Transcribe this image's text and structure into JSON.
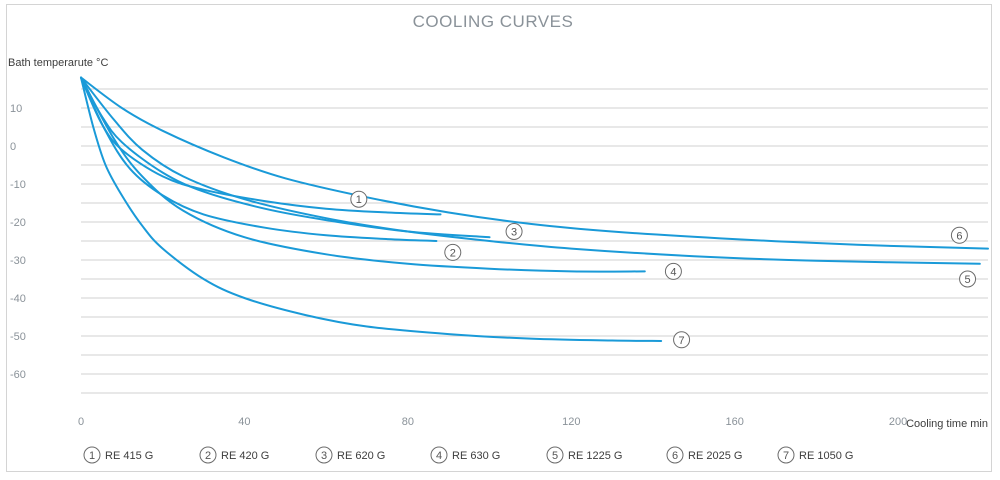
{
  "chart_data": {
    "type": "line",
    "title": "COOLING CURVES",
    "ylabel": "Bath temperarute °C",
    "xlabel": "Cooling time min",
    "xlim": [
      0,
      222
    ],
    "ylim": [
      -70,
      20
    ],
    "x_ticks": [
      0,
      40,
      80,
      120,
      160,
      200
    ],
    "y_ticks": [
      10,
      0,
      -10,
      -20,
      -30,
      -40,
      -50,
      -60
    ],
    "grid": true,
    "legend_position": "bottom",
    "line_color": "#1a9ad8",
    "series": [
      {
        "marker": "1",
        "name": "RE 415 G",
        "label_point": [
          68,
          -14
        ],
        "points": [
          [
            0,
            18
          ],
          [
            5,
            6
          ],
          [
            10,
            -1
          ],
          [
            20,
            -8
          ],
          [
            30,
            -11.5
          ],
          [
            45,
            -14.5
          ],
          [
            60,
            -16.5
          ],
          [
            75,
            -17.5
          ],
          [
            88,
            -18
          ]
        ]
      },
      {
        "marker": "2",
        "name": "RE 420 G",
        "label_point": [
          91,
          -28
        ],
        "points": [
          [
            0,
            18
          ],
          [
            6,
            4
          ],
          [
            12,
            -6
          ],
          [
            20,
            -13
          ],
          [
            30,
            -18
          ],
          [
            45,
            -21.5
          ],
          [
            60,
            -23.5
          ],
          [
            75,
            -24.5
          ],
          [
            87,
            -25
          ]
        ]
      },
      {
        "marker": "3",
        "name": "RE 620 G",
        "label_point": [
          106,
          -22.5
        ],
        "points": [
          [
            0,
            18
          ],
          [
            5,
            8
          ],
          [
            10,
            1
          ],
          [
            20,
            -7
          ],
          [
            30,
            -12
          ],
          [
            45,
            -16.5
          ],
          [
            60,
            -19.5
          ],
          [
            80,
            -22.5
          ],
          [
            100,
            -24
          ]
        ]
      },
      {
        "marker": "4",
        "name": "RE 630 G",
        "label_point": [
          145,
          -33
        ],
        "points": [
          [
            0,
            18
          ],
          [
            8,
            2
          ],
          [
            15,
            -8
          ],
          [
            25,
            -17
          ],
          [
            40,
            -24
          ],
          [
            60,
            -28.5
          ],
          [
            80,
            -31
          ],
          [
            100,
            -32.3
          ],
          [
            120,
            -33
          ],
          [
            138,
            -33
          ]
        ]
      },
      {
        "marker": "5",
        "name": "RE 1225 G",
        "label_point": [
          217,
          -35
        ],
        "points": [
          [
            0,
            18
          ],
          [
            8,
            7
          ],
          [
            15,
            -1
          ],
          [
            25,
            -8
          ],
          [
            40,
            -14
          ],
          [
            60,
            -19
          ],
          [
            80,
            -22.5
          ],
          [
            100,
            -25
          ],
          [
            120,
            -27
          ],
          [
            150,
            -29
          ],
          [
            180,
            -30.2
          ],
          [
            220,
            -31
          ]
        ]
      },
      {
        "marker": "6",
        "name": "RE 2025 G",
        "label_point": [
          215,
          -23.5
        ],
        "points": [
          [
            0,
            18
          ],
          [
            10,
            10
          ],
          [
            20,
            4
          ],
          [
            35,
            -3
          ],
          [
            50,
            -8.5
          ],
          [
            70,
            -13.5
          ],
          [
            90,
            -17.5
          ],
          [
            110,
            -20.5
          ],
          [
            130,
            -22.5
          ],
          [
            160,
            -24.5
          ],
          [
            190,
            -26
          ],
          [
            222,
            -27
          ]
        ]
      },
      {
        "marker": "7",
        "name": "RE 1050 G",
        "label_point": [
          147,
          -51
        ],
        "points": [
          [
            0,
            18
          ],
          [
            3,
            5
          ],
          [
            6,
            -5
          ],
          [
            10,
            -13
          ],
          [
            15,
            -21
          ],
          [
            20,
            -27
          ],
          [
            30,
            -35
          ],
          [
            40,
            -40
          ],
          [
            55,
            -44.5
          ],
          [
            70,
            -47.5
          ],
          [
            90,
            -49.5
          ],
          [
            110,
            -50.7
          ],
          [
            130,
            -51.2
          ],
          [
            142,
            -51.3
          ]
        ]
      }
    ]
  }
}
